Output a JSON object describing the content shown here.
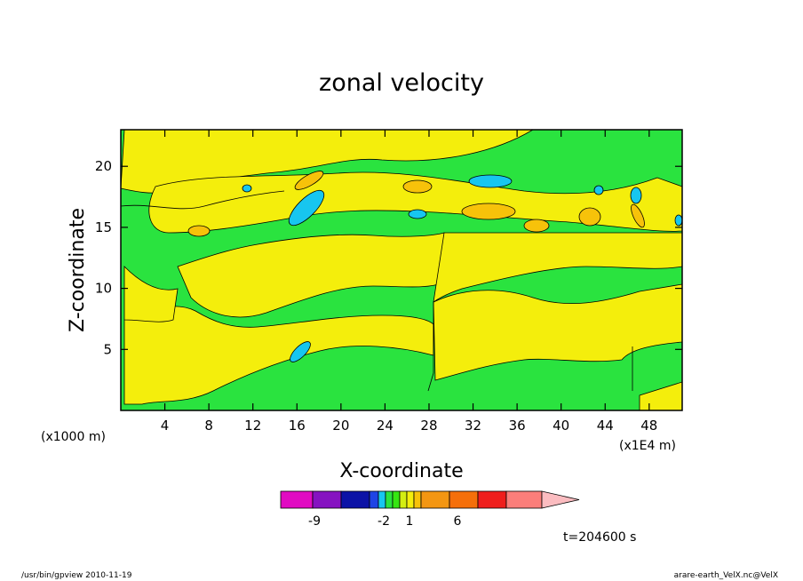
{
  "chart_data": {
    "type": "heatmap",
    "title": "zonal velocity",
    "xlabel": "X-coordinate",
    "ylabel": "Z-coordinate",
    "x_unit_label": "(x1000 m)",
    "y_unit_label": "(x1E4 m)",
    "xlim": [
      0,
      51
    ],
    "ylim": [
      0,
      23
    ],
    "x_ticks": [
      4,
      8,
      12,
      16,
      20,
      24,
      28,
      32,
      36,
      40,
      44,
      48
    ],
    "y_ticks": [
      5,
      10,
      15,
      20
    ],
    "colorbar": {
      "colors": [
        "#e10bc2",
        "#8613c1",
        "#0c13a6",
        "#1f44e5",
        "#17c6ef",
        "#2ae33f",
        "#36e612",
        "#d3ee12",
        "#f4ee0c",
        "#f7c20a",
        "#f39612",
        "#f56f0a",
        "#ef1e1c",
        "#fb7e7a",
        "#fbbcc0"
      ],
      "tick_labels": [
        {
          "label": "-9",
          "value": -9
        },
        {
          "label": "-2",
          "value": -2
        },
        {
          "label": "1",
          "value": 1
        },
        {
          "label": "6",
          "value": 6
        }
      ]
    },
    "dominant_levels": [
      {
        "range": "0 to 1",
        "color": "#2ae33f"
      },
      {
        "range": "1 to 2",
        "color": "#f4ee0c"
      },
      {
        "range": "-1 to 0",
        "color": "#17c6ef"
      },
      {
        "range": "2 to 3",
        "color": "#f7c20a"
      }
    ],
    "grid": false
  },
  "annotations": {
    "time": "t=204600 s",
    "program": "/usr/bin/gpview   2010-11-19",
    "source": "arare-earth_VelX.nc@VelX"
  }
}
